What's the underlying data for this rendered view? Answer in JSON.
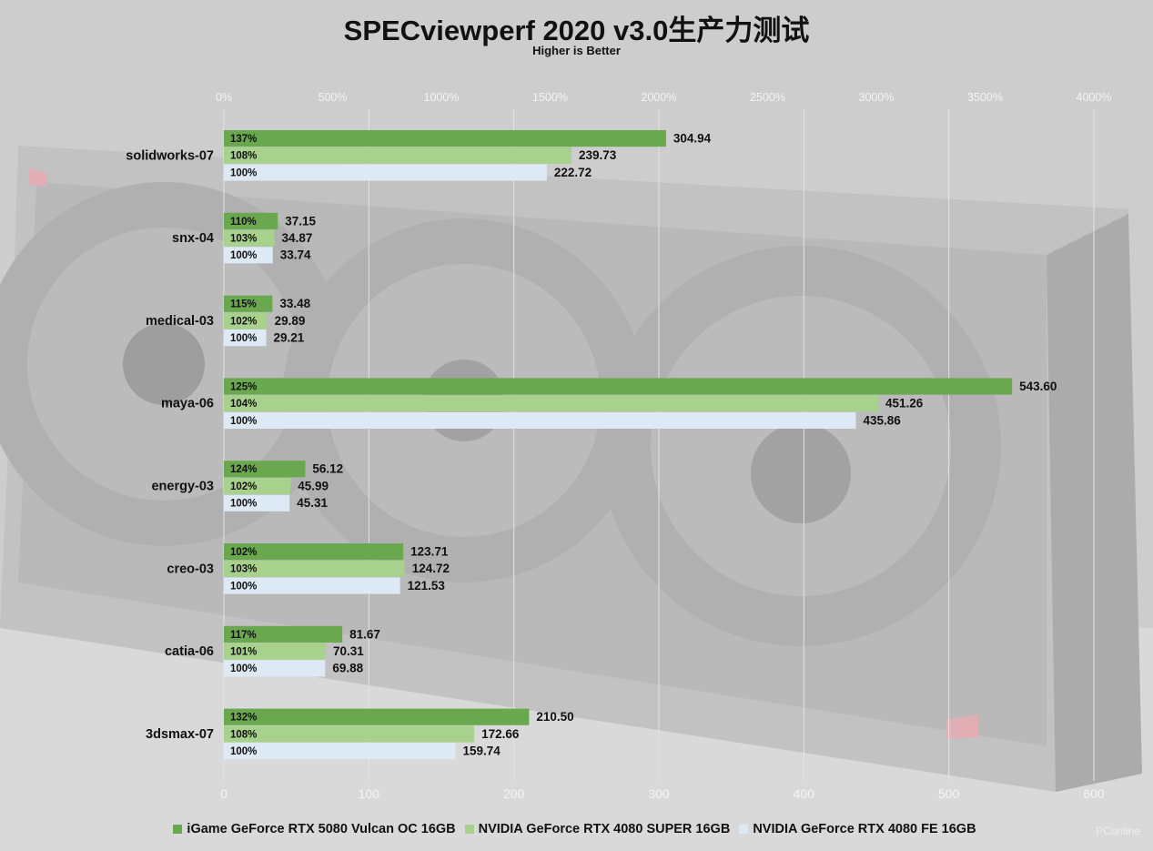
{
  "header": {
    "title": "SPECviewperf 2020 v3.0生产力测试",
    "subtitle": "Higher is Better"
  },
  "watermark": "PConline",
  "colors": {
    "series_1": "#6aa84f",
    "series_2": "#a9d18e",
    "series_3": "#dde9f4",
    "background": "#cfcfcf"
  },
  "chart_data": {
    "type": "bar",
    "orientation": "horizontal",
    "categories": [
      "solidworks-07",
      "snx-04",
      "medical-03",
      "maya-06",
      "energy-03",
      "creo-03",
      "catia-06",
      "3dsmax-07"
    ],
    "series": [
      {
        "name": "iGame GeForce RTX 5080 Vulcan OC 16GB",
        "color": "#6aa84f",
        "values": [
          304.94,
          37.15,
          33.48,
          543.6,
          56.12,
          123.71,
          81.67,
          210.5
        ],
        "value_labels": [
          "304.94",
          "37.15",
          "33.48",
          "543.60",
          "56.12",
          "123.71",
          "81.67",
          "210.50"
        ],
        "percent_labels": [
          "137%",
          "110%",
          "115%",
          "125%",
          "124%",
          "102%",
          "117%",
          "132%"
        ]
      },
      {
        "name": "NVIDIA GeForce RTX 4080 SUPER 16GB",
        "color": "#a9d18e",
        "values": [
          239.73,
          34.87,
          29.89,
          451.26,
          45.99,
          124.72,
          70.31,
          172.66
        ],
        "value_labels": [
          "239.73",
          "34.87",
          "29.89",
          "451.26",
          "45.99",
          "124.72",
          "70.31",
          "172.66"
        ],
        "percent_labels": [
          "108%",
          "103%",
          "102%",
          "104%",
          "102%",
          "103%",
          "101%",
          "108%"
        ]
      },
      {
        "name": "NVIDIA GeForce RTX 4080 FE 16GB",
        "color": "#dde9f4",
        "values": [
          222.72,
          33.74,
          29.21,
          435.86,
          45.31,
          121.53,
          69.88,
          159.74
        ],
        "value_labels": [
          "222.72",
          "33.74",
          "29.21",
          "435.86",
          "45.31",
          "121.53",
          "69.88",
          "159.74"
        ],
        "percent_labels": [
          "100%",
          "100%",
          "100%",
          "100%",
          "100%",
          "100%",
          "100%",
          "100%"
        ]
      }
    ],
    "x_axis_bottom": {
      "range": [
        0,
        600
      ],
      "ticks": [
        0,
        100,
        200,
        300,
        400,
        500,
        600
      ],
      "tick_labels": [
        "0",
        "100",
        "200",
        "300",
        "400",
        "500",
        "600"
      ]
    },
    "x_axis_top": {
      "range": [
        0,
        4000
      ],
      "ticks": [
        0,
        500,
        1000,
        1500,
        2000,
        2500,
        3000,
        3500,
        4000
      ],
      "tick_labels": [
        "0%",
        "500%",
        "1000%",
        "1500%",
        "2000%",
        "2500%",
        "3000%",
        "3500%",
        "4000%"
      ]
    },
    "grid": true,
    "legend_position": "bottom"
  }
}
